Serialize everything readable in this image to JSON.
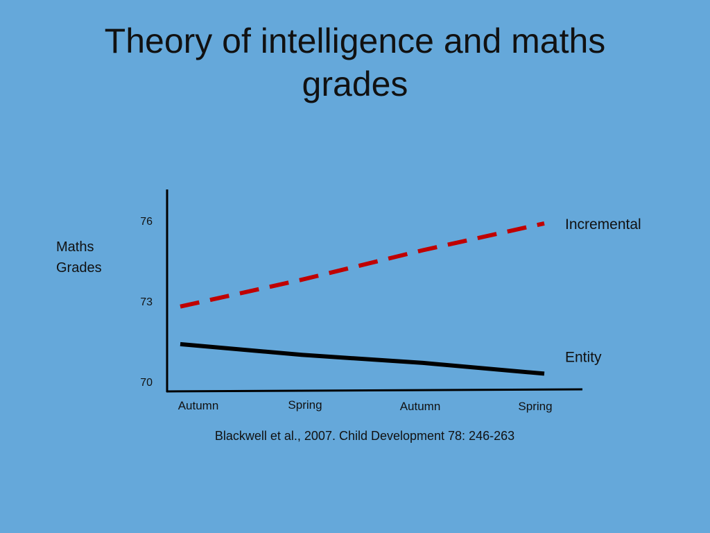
{
  "slide": {
    "title_line1": "Theory of intelligence and maths",
    "title_line2": "grades",
    "citation": "Blackwell et al., 2007. Child Development 78: 246-263"
  },
  "chart_data": {
    "type": "line",
    "title": "Theory of intelligence and maths grades",
    "ylabel": [
      "Maths",
      "Grades"
    ],
    "xlabel": "",
    "categories": [
      "Autumn",
      "Spring",
      "Autumn",
      "Spring"
    ],
    "yticks": [
      76,
      73,
      70
    ],
    "ylim": [
      70,
      76
    ],
    "grid": false,
    "series": [
      {
        "name": "Incremental",
        "color": "#C00000",
        "style": "dashed",
        "values": [
          72.8,
          73.8,
          74.9,
          75.9
        ]
      },
      {
        "name": "Entity",
        "color": "#000000",
        "style": "solid",
        "values": [
          71.4,
          71.0,
          70.7,
          70.3
        ]
      }
    ]
  }
}
